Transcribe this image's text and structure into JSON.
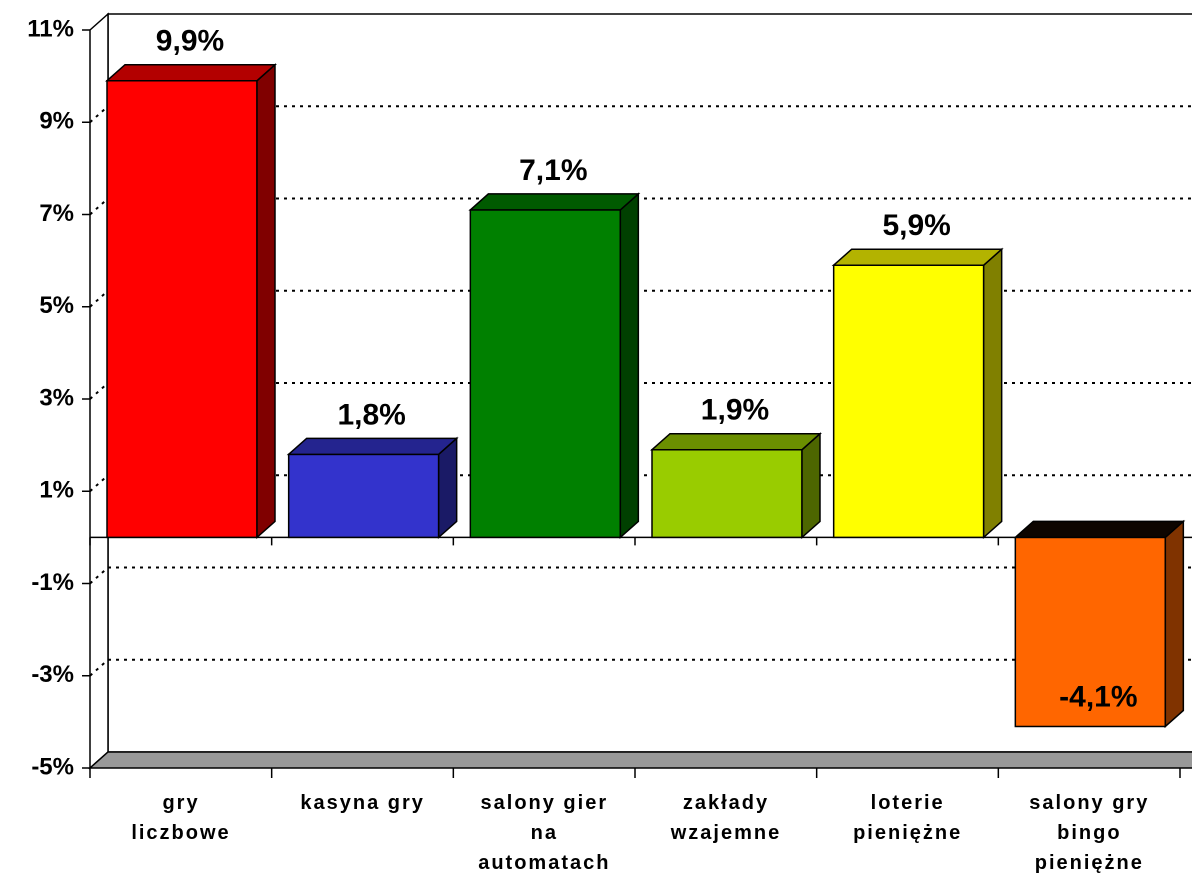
{
  "chart_data": {
    "type": "bar3d",
    "categories": [
      "gry\nliczbowe",
      "kasyna gry",
      "salony gier\nna\nautomatach",
      "zakłady\nwzajemne",
      "loterie\npieniężne",
      "salony gry\nbingo\npieniężne"
    ],
    "values": [
      9.9,
      1.8,
      7.1,
      1.9,
      5.9,
      -4.1
    ],
    "value_labels": [
      "9,9%",
      "1,8%",
      "7,1%",
      "1,9%",
      "5,9%",
      "-4,1%"
    ],
    "colors": [
      "#ff0000",
      "#3333cc",
      "#008000",
      "#99cc00",
      "#ffff00",
      "#ff6600"
    ],
    "ylim": [
      -5,
      11
    ],
    "yticks": [
      {
        "value": -5,
        "label": "-5%"
      },
      {
        "value": -3,
        "label": "-3%"
      },
      {
        "value": -1,
        "label": "-1%"
      },
      {
        "value": 1,
        "label": "1%"
      },
      {
        "value": 3,
        "label": "3%"
      },
      {
        "value": 5,
        "label": "5%"
      },
      {
        "value": 7,
        "label": "7%"
      },
      {
        "value": 9,
        "label": "9%"
      },
      {
        "value": 11,
        "label": "11%"
      }
    ],
    "grid": true
  }
}
